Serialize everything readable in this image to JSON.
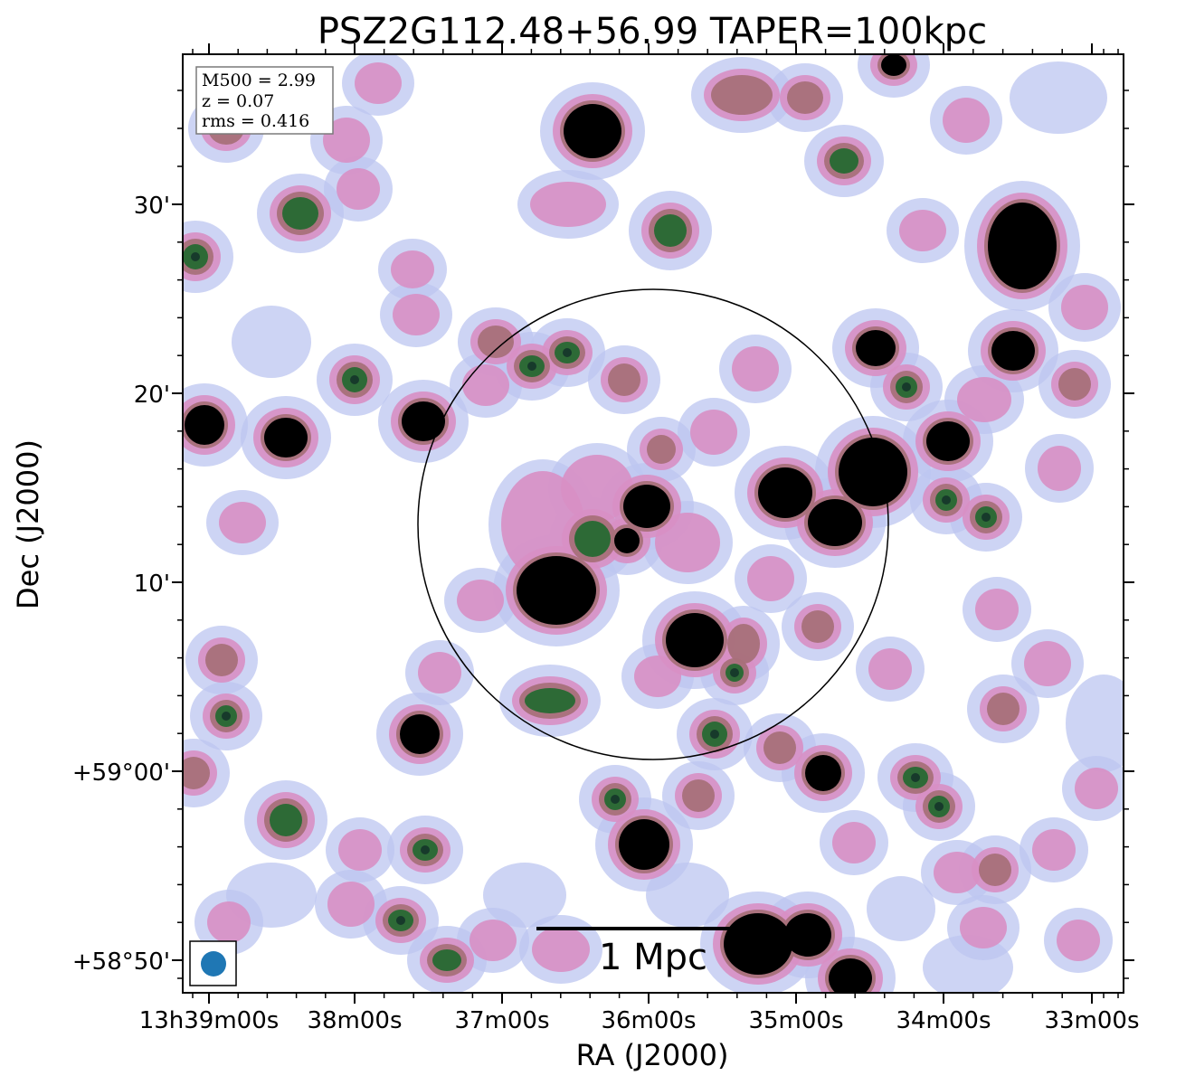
{
  "title": "PSZ2G112.48+56.99 TAPER=100kpc",
  "axes": {
    "xlabel": "RA (J2000)",
    "ylabel": "Dec (J2000)",
    "x_ticks": [
      "13h39m00s",
      "38m00s",
      "37m00s",
      "36m00s",
      "35m00s",
      "34m00s",
      "33m00s"
    ],
    "y_ticks": [
      "30'",
      "20'",
      "10'",
      "+59°00'",
      "+58°50'"
    ]
  },
  "info_box": {
    "m500": "M500 = 2.99",
    "z": "z = 0.07",
    "rms": "rms = 0.416"
  },
  "scale_bar": {
    "label": "1 Mpc"
  },
  "colors": {
    "background": "#ffffff",
    "faint_emission": "#bcc6f0",
    "low_emission": "#d88fc4",
    "mid_emission": "#a8707a",
    "high_emission": "#2d6a36",
    "saturated": "#000000",
    "beam": "#1f77b4"
  },
  "icons": [
    "beam-ellipse-icon",
    "cluster-circle-icon"
  ]
}
